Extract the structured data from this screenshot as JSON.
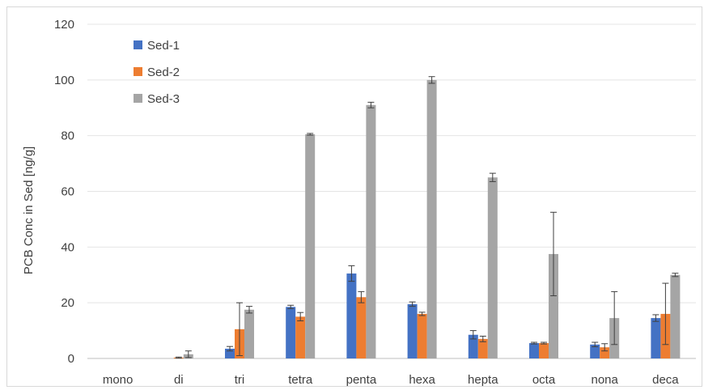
{
  "chart_data": {
    "type": "bar",
    "title": "",
    "xlabel": "",
    "ylabel": "PCB Conc in Sed [ng/g]",
    "ylim": [
      0,
      120
    ],
    "yticks": [
      0,
      20,
      40,
      60,
      80,
      100,
      120
    ],
    "grid": true,
    "legend": "top-left",
    "categories": [
      "mono",
      "di",
      "tri",
      "tetra",
      "penta",
      "hexa",
      "hepta",
      "octa",
      "nona",
      "deca"
    ],
    "series": [
      {
        "name": "Sed-1",
        "color": "#4472c4",
        "values": [
          0,
          0,
          3.5,
          18.5,
          30.5,
          19.5,
          8.5,
          5.5,
          5,
          14.5
        ],
        "errors": [
          0,
          0,
          0.8,
          0.6,
          2.8,
          0.8,
          1.5,
          0.3,
          0.8,
          1.2
        ]
      },
      {
        "name": "Sed-2",
        "color": "#ed7d31",
        "values": [
          0,
          0.3,
          10.5,
          15,
          22,
          16,
          7,
          5.5,
          4,
          16
        ],
        "errors": [
          0,
          0.2,
          9.5,
          1.5,
          2,
          0.6,
          1,
          0.3,
          1.3,
          11
        ]
      },
      {
        "name": "Sed-3",
        "color": "#a5a5a5",
        "values": [
          0,
          1.5,
          17.5,
          80.5,
          91,
          100,
          65,
          37.5,
          14.5,
          30
        ],
        "errors": [
          0,
          1.2,
          1.2,
          0.3,
          1,
          1.2,
          1.5,
          15,
          9.5,
          0.6
        ]
      }
    ]
  }
}
